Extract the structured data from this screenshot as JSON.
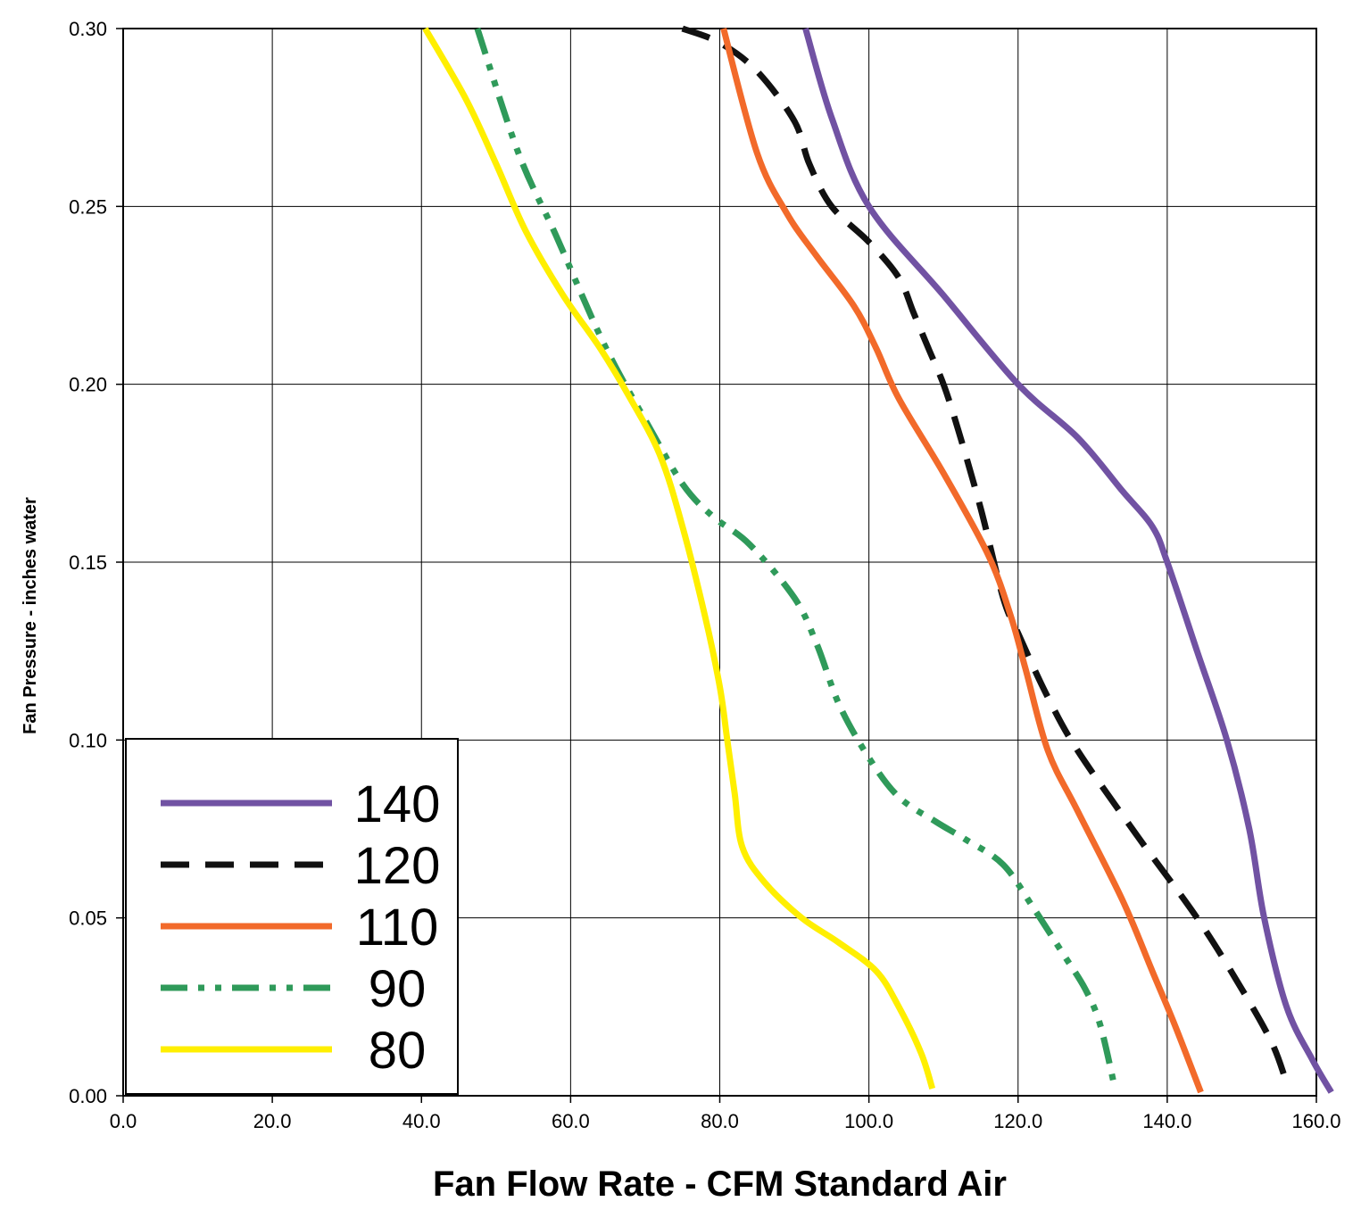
{
  "chart_data": {
    "type": "line",
    "title": "",
    "xlabel": "Fan Flow Rate - CFM Standard Air",
    "ylabel": "Fan Pressure - inches water",
    "xlim": [
      0,
      160
    ],
    "ylim": [
      0,
      0.3
    ],
    "x_ticks": [
      "0.0",
      "20.0",
      "40.0",
      "60.0",
      "80.0",
      "100.0",
      "120.0",
      "140.0",
      "160.0"
    ],
    "y_ticks": [
      "0.00",
      "0.05",
      "0.10",
      "0.15",
      "0.20",
      "0.25",
      "0.30"
    ],
    "grid": true,
    "legend_position": "bottom-left",
    "series": [
      {
        "name": "140",
        "color": "#7152a3",
        "dash": "solid",
        "points": [
          [
            91.5,
            0.3
          ],
          [
            95,
            0.275
          ],
          [
            100,
            0.25
          ],
          [
            110,
            0.225
          ],
          [
            120,
            0.2
          ],
          [
            128,
            0.185
          ],
          [
            134,
            0.17
          ],
          [
            138,
            0.16
          ],
          [
            140,
            0.15
          ],
          [
            144,
            0.125
          ],
          [
            148,
            0.1
          ],
          [
            151,
            0.075
          ],
          [
            153,
            0.05
          ],
          [
            156,
            0.025
          ],
          [
            159.5,
            0.01
          ],
          [
            162,
            0.001
          ]
        ]
      },
      {
        "name": "120",
        "color": "#111111",
        "dash": "dashed",
        "points": [
          [
            75,
            0.3
          ],
          [
            80,
            0.296
          ],
          [
            85,
            0.288
          ],
          [
            90,
            0.274
          ],
          [
            92,
            0.262
          ],
          [
            95,
            0.25
          ],
          [
            100,
            0.24
          ],
          [
            104,
            0.23
          ],
          [
            106,
            0.22
          ],
          [
            108,
            0.21
          ],
          [
            110,
            0.2
          ],
          [
            112,
            0.187
          ],
          [
            115,
            0.165
          ],
          [
            118,
            0.14
          ],
          [
            120,
            0.13
          ],
          [
            124,
            0.112
          ],
          [
            128,
            0.097
          ],
          [
            136,
            0.073
          ],
          [
            144,
            0.05
          ],
          [
            150,
            0.03
          ],
          [
            154,
            0.015
          ],
          [
            155.8,
            0.005
          ]
        ]
      },
      {
        "name": "110",
        "color": "#f26a2a",
        "dash": "solid",
        "points": [
          [
            80.5,
            0.3
          ],
          [
            85,
            0.265
          ],
          [
            89,
            0.248
          ],
          [
            93,
            0.236
          ],
          [
            98,
            0.222
          ],
          [
            101,
            0.21
          ],
          [
            104,
            0.196
          ],
          [
            110,
            0.175
          ],
          [
            116,
            0.152
          ],
          [
            119,
            0.135
          ],
          [
            121,
            0.12
          ],
          [
            124,
            0.097
          ],
          [
            128,
            0.08
          ],
          [
            134,
            0.055
          ],
          [
            138,
            0.035
          ],
          [
            141,
            0.02
          ],
          [
            144.5,
            0.001
          ]
        ]
      },
      {
        "name": "90",
        "color": "#2f9a5a",
        "dash": "dashdotdot",
        "points": [
          [
            47.5,
            0.3
          ],
          [
            53,
            0.265
          ],
          [
            58,
            0.242
          ],
          [
            63,
            0.218
          ],
          [
            66,
            0.205
          ],
          [
            70,
            0.19
          ],
          [
            75,
            0.172
          ],
          [
            79,
            0.163
          ],
          [
            84,
            0.155
          ],
          [
            90,
            0.14
          ],
          [
            93,
            0.127
          ],
          [
            96,
            0.11
          ],
          [
            100,
            0.095
          ],
          [
            104,
            0.084
          ],
          [
            109,
            0.077
          ],
          [
            113,
            0.072
          ],
          [
            118,
            0.065
          ],
          [
            122,
            0.053
          ],
          [
            126,
            0.04
          ],
          [
            129,
            0.03
          ],
          [
            131,
            0.02
          ],
          [
            133,
            0.002
          ]
        ]
      },
      {
        "name": "80",
        "color": "#ffef00",
        "dash": "solid",
        "points": [
          [
            40.5,
            0.3
          ],
          [
            46,
            0.28
          ],
          [
            50,
            0.262
          ],
          [
            54,
            0.243
          ],
          [
            59,
            0.225
          ],
          [
            64,
            0.21
          ],
          [
            68,
            0.196
          ],
          [
            72,
            0.18
          ],
          [
            75,
            0.16
          ],
          [
            78,
            0.135
          ],
          [
            80,
            0.115
          ],
          [
            81,
            0.1
          ],
          [
            82,
            0.085
          ],
          [
            83,
            0.07
          ],
          [
            86,
            0.06
          ],
          [
            91,
            0.05
          ],
          [
            96,
            0.043
          ],
          [
            101,
            0.035
          ],
          [
            104,
            0.025
          ],
          [
            107,
            0.012
          ],
          [
            108.5,
            0.002
          ]
        ]
      }
    ]
  }
}
